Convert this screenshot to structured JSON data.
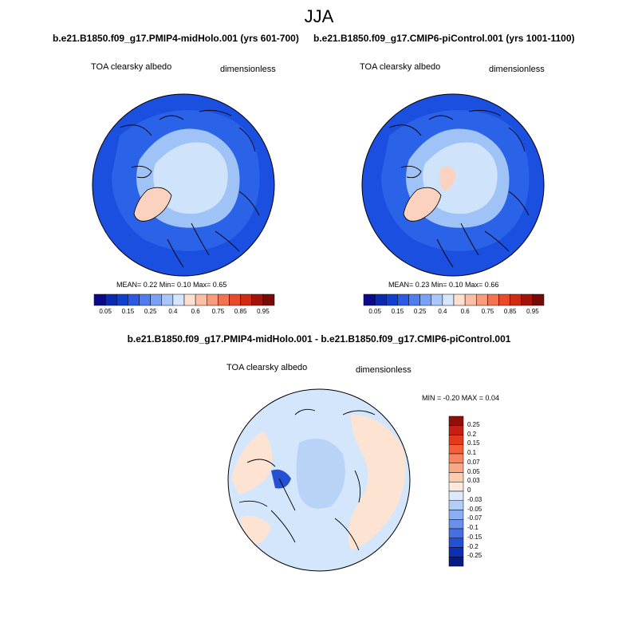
{
  "figure": {
    "season": "JJA",
    "panels": [
      {
        "title": "b.e21.B1850.f09_g17.PMIP4-midHolo.001 (yrs 601-700)",
        "variable": "TOA clearsky albedo",
        "units": "dimensionless",
        "stats": "MEAN=   0.22  Min=   0.10  Max=   0.65"
      },
      {
        "title": "b.e21.B1850.f09_g17.CMIP6-piControl.001 (yrs 1001-1100)",
        "variable": "TOA clearsky albedo",
        "units": "dimensionless",
        "stats": "MEAN=   0.23  Min=   0.10  Max=   0.66"
      },
      {
        "title": "b.e21.B1850.f09_g17.PMIP4-midHolo.001 - b.e21.B1850.f09_g17.CMIP6-piControl.001",
        "variable": "TOA clearsky albedo",
        "units": "dimensionless",
        "stats": "MIN =  -0.20 MAX =   0.04"
      }
    ]
  },
  "colorbar_abs": {
    "tick_labels": [
      "0.05",
      "0.15",
      "0.25",
      "0.4",
      "0.6",
      "0.75",
      "0.85",
      "0.95"
    ],
    "colors": [
      "#0a0a8a",
      "#0c2ab0",
      "#1040d0",
      "#2a5ae6",
      "#4f7df0",
      "#7ba1f6",
      "#a9c6fa",
      "#d6e6fc",
      "#fde0d0",
      "#fbbfa6",
      "#f89b7b",
      "#f37350",
      "#e84a2a",
      "#cf2a12",
      "#a3130b",
      "#780a08"
    ]
  },
  "colorbar_diff": {
    "tick_labels": [
      "0.25",
      "0.2",
      "0.15",
      "0.1",
      "0.07",
      "0.05",
      "0.03",
      "0",
      "-0.03",
      "-0.05",
      "-0.07",
      "-0.1",
      "-0.15",
      "-0.2",
      "-0.25"
    ],
    "colors": [
      "#8f0f0a",
      "#c41f12",
      "#e23a1c",
      "#f45f36",
      "#f7845e",
      "#f9a886",
      "#fcccb2",
      "#fde8dc",
      "#dbe9fb",
      "#b3cdf7",
      "#8caff2",
      "#6a90ec",
      "#4470e2",
      "#2450d4",
      "#0c2fb4",
      "#061b86"
    ]
  },
  "colors": {
    "ocean": "#1a4fe0",
    "ocean_inner": "#2a62e8",
    "sea_ice": "#cfe3fb",
    "ice_mid": "#9fc3f6",
    "greenland": "#fbd2c0",
    "diff_neg": "#d4e6fb",
    "diff_pos": "#fde4d2",
    "diff_core": "#b9d3f6"
  }
}
